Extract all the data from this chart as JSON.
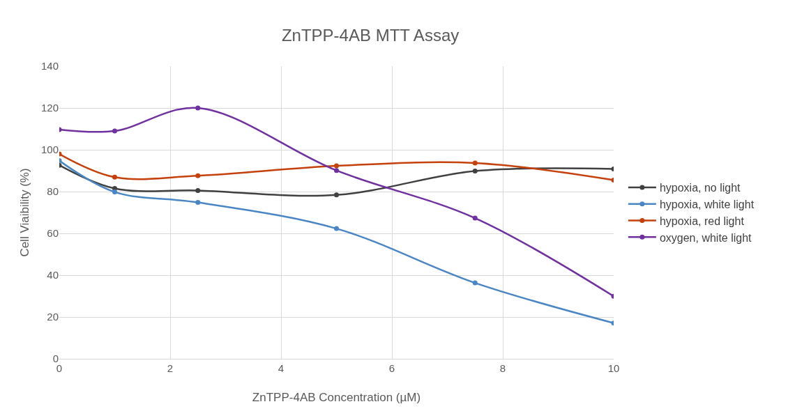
{
  "chart_data": {
    "type": "line",
    "title": "ZnTPP-4AB MTT Assay",
    "xlabel": "ZnTPP-4AB Concentration (µM)",
    "ylabel": "Cell Viaibility (%)",
    "x": [
      0,
      1,
      2.5,
      5,
      7.5,
      10
    ],
    "series": [
      {
        "name": "hypoxia, no light",
        "color": "#404040",
        "values": [
          92.6,
          81.5,
          80.5,
          78.4,
          89.8,
          90.8
        ]
      },
      {
        "name": "hypoxia, white light",
        "color": "#4a86c5",
        "values": [
          94.8,
          79.8,
          74.8,
          62.3,
          36.3,
          17.1
        ]
      },
      {
        "name": "hypoxia, red light",
        "color": "#c5400a",
        "values": [
          98,
          86.9,
          87.6,
          92.3,
          93.7,
          85.5
        ]
      },
      {
        "name": "oxygen, white light",
        "color": "#7030a0",
        "values": [
          109.7,
          109,
          120,
          90.1,
          67.3,
          29.9
        ]
      }
    ],
    "xlim": [
      0,
      10
    ],
    "xticks": [
      0,
      2,
      4,
      6,
      8,
      10
    ],
    "ylim": [
      0,
      140
    ],
    "yticks": [
      0,
      20,
      40,
      60,
      80,
      100,
      120,
      140
    ],
    "grid": true,
    "legend": "right",
    "marker": "circle",
    "line_style": "solid"
  }
}
